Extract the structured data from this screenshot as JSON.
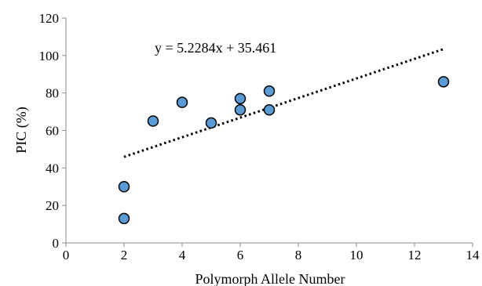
{
  "chart_data": {
    "type": "scatter",
    "title": "",
    "xlabel": "Polymorph Allele Number",
    "ylabel": "PIC (%)",
    "xlim": [
      0,
      14
    ],
    "ylim": [
      0,
      120
    ],
    "x_ticks": [
      "0",
      "2",
      "4",
      "6",
      "8",
      "10",
      "12",
      "14"
    ],
    "y_ticks": [
      "0",
      "20",
      "40",
      "60",
      "80",
      "100",
      "120"
    ],
    "grid": false,
    "legend": "none",
    "series": [
      {
        "points": [
          {
            "x": 2,
            "y": 13
          },
          {
            "x": 2,
            "y": 30
          },
          {
            "x": 3,
            "y": 65
          },
          {
            "x": 4,
            "y": 75
          },
          {
            "x": 5,
            "y": 64
          },
          {
            "x": 6,
            "y": 71
          },
          {
            "x": 6,
            "y": 77
          },
          {
            "x": 7,
            "y": 71
          },
          {
            "x": 7,
            "y": 81
          },
          {
            "x": 13,
            "y": 86
          }
        ],
        "color": "#5b9bd5"
      }
    ],
    "trendline": {
      "equation": "y = 5.2284x + 35.461",
      "slope": 5.2284,
      "intercept": 35.461,
      "x_range": [
        2,
        13
      ],
      "style": "dotted",
      "color": "#000000"
    }
  }
}
